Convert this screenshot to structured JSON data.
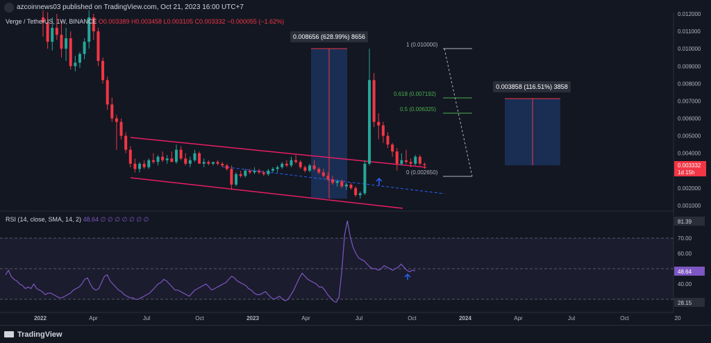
{
  "header": {
    "published": "azcoinnews03 published on TradingView.com, Oct 21, 2023 16:00 UTC+7"
  },
  "legend": {
    "symbol": "Verge / TetherUS, 1W, BINANCE",
    "ohlc": "O0.003389  H0.003458  L0.003105  C0.003332  −0.000055 (−1.62%)"
  },
  "rsi_legend": {
    "label": "RSI (14, close, SMA, 14, 2)",
    "value": "48.64  ∅  ∅  ∅  ∅  ∅  ∅  ∅"
  },
  "colors": {
    "background": "#131722",
    "up": "#26a69a",
    "down": "#f23645",
    "channel": "#e91e63",
    "rsi": "#7e57c2",
    "fib": "#4caf50",
    "box": "#1e3a6e"
  },
  "price_axis": {
    "ticks": [
      "0.012000",
      "0.011000",
      "0.010000",
      "0.009000",
      "0.008000",
      "0.007000",
      "0.006000",
      "0.005000",
      "0.004000",
      "0.002000",
      "0.001000"
    ],
    "current_price": "0.003332",
    "countdown": "1d 15h"
  },
  "rsi_axis": {
    "ticks": [
      "70.00",
      "60.00",
      "40.00"
    ],
    "high": "81.39",
    "current": "48.64",
    "low": "28.15"
  },
  "time_axis": [
    "2022",
    "Apr",
    "Jul",
    "Oct",
    "2023",
    "Apr",
    "Jul",
    "Oct",
    "2024",
    "Apr",
    "Jul",
    "Oct",
    "20"
  ],
  "annotations": {
    "measure1": "0.008656 (628.99%) 8656",
    "measure2": "0.003858 (116.51%) 3858",
    "fib_1": "1 (0.010000)",
    "fib_618": "0.618 (0.007192)",
    "fib_5": "0.5 (0.006325)",
    "fib_0": "0 (0.002650)"
  },
  "chart_data": {
    "type": "candlestick",
    "symbol": "Verge / TetherUS",
    "interval": "1W",
    "exchange": "BINANCE",
    "last": {
      "open": 0.003389,
      "high": 0.003458,
      "low": 0.003105,
      "close": 0.003332
    },
    "ylim": [
      0.0008,
      0.012
    ],
    "candles": [
      [
        0.0118,
        0.0122,
        0.0107,
        0.0115
      ],
      [
        0.0115,
        0.0121,
        0.01,
        0.0104
      ],
      [
        0.0104,
        0.0118,
        0.0099,
        0.0112
      ],
      [
        0.0112,
        0.012,
        0.0105,
        0.0108
      ],
      [
        0.0108,
        0.0116,
        0.0095,
        0.01
      ],
      [
        0.01,
        0.0112,
        0.0093,
        0.0106
      ],
      [
        0.0106,
        0.011,
        0.0088,
        0.009
      ],
      [
        0.009,
        0.0096,
        0.0087,
        0.0092
      ],
      [
        0.0092,
        0.0098,
        0.0089,
        0.0097
      ],
      [
        0.0097,
        0.0106,
        0.0094,
        0.0104
      ],
      [
        0.0104,
        0.0122,
        0.01,
        0.0118
      ],
      [
        0.0118,
        0.012,
        0.0105,
        0.011
      ],
      [
        0.011,
        0.0112,
        0.009,
        0.0093
      ],
      [
        0.0093,
        0.0095,
        0.008,
        0.0082
      ],
      [
        0.0082,
        0.0084,
        0.0065,
        0.0068
      ],
      [
        0.0068,
        0.0072,
        0.0058,
        0.006
      ],
      [
        0.006,
        0.0062,
        0.0042,
        0.0058
      ],
      [
        0.0058,
        0.006,
        0.0048,
        0.005
      ],
      [
        0.005,
        0.0052,
        0.004,
        0.0042
      ],
      [
        0.0042,
        0.0044,
        0.0032,
        0.0034
      ],
      [
        0.0034,
        0.0037,
        0.0029,
        0.0031
      ],
      [
        0.0031,
        0.0035,
        0.0029,
        0.0034
      ],
      [
        0.0034,
        0.0036,
        0.0031,
        0.0032
      ],
      [
        0.0032,
        0.0037,
        0.0031,
        0.0036
      ],
      [
        0.0036,
        0.004,
        0.0034,
        0.0035
      ],
      [
        0.0035,
        0.0039,
        0.0033,
        0.0038
      ],
      [
        0.0038,
        0.0041,
        0.0035,
        0.0036
      ],
      [
        0.0036,
        0.0039,
        0.0034,
        0.0037
      ],
      [
        0.0037,
        0.0041,
        0.0035,
        0.0035
      ],
      [
        0.0035,
        0.0045,
        0.0034,
        0.0042
      ],
      [
        0.0042,
        0.0044,
        0.0036,
        0.0037
      ],
      [
        0.0037,
        0.004,
        0.0033,
        0.0034
      ],
      [
        0.0034,
        0.0038,
        0.0032,
        0.0036
      ],
      [
        0.0036,
        0.0042,
        0.0035,
        0.004
      ],
      [
        0.004,
        0.0041,
        0.0034,
        0.0034
      ],
      [
        0.0034,
        0.0037,
        0.0032,
        0.0035
      ],
      [
        0.0035,
        0.0036,
        0.0033,
        0.0034
      ],
      [
        0.0034,
        0.0035,
        0.0033,
        0.0035
      ],
      [
        0.0035,
        0.0036,
        0.0033,
        0.0034
      ],
      [
        0.0034,
        0.0035,
        0.0032,
        0.0033
      ],
      [
        0.0033,
        0.0034,
        0.003,
        0.0031
      ],
      [
        0.0031,
        0.0033,
        0.0019,
        0.0022
      ],
      [
        0.0022,
        0.0029,
        0.0021,
        0.0028
      ],
      [
        0.0028,
        0.003,
        0.0026,
        0.0027
      ],
      [
        0.0027,
        0.0031,
        0.0026,
        0.003
      ],
      [
        0.003,
        0.0031,
        0.0028,
        0.0029
      ],
      [
        0.0029,
        0.0032,
        0.0028,
        0.003
      ],
      [
        0.003,
        0.0031,
        0.0028,
        0.0029
      ],
      [
        0.0029,
        0.003,
        0.0027,
        0.0028
      ],
      [
        0.0028,
        0.0031,
        0.0027,
        0.003
      ],
      [
        0.003,
        0.0032,
        0.0029,
        0.0031
      ],
      [
        0.0031,
        0.0033,
        0.0029,
        0.0032
      ],
      [
        0.0032,
        0.0035,
        0.0031,
        0.0034
      ],
      [
        0.0034,
        0.0036,
        0.0032,
        0.0033
      ],
      [
        0.0033,
        0.0038,
        0.0032,
        0.0036
      ],
      [
        0.0036,
        0.0039,
        0.0034,
        0.0035
      ],
      [
        0.0035,
        0.0036,
        0.0031,
        0.0032
      ],
      [
        0.0032,
        0.0033,
        0.0029,
        0.003
      ],
      [
        0.003,
        0.0034,
        0.0029,
        0.0033
      ],
      [
        0.0033,
        0.0036,
        0.003,
        0.0031
      ],
      [
        0.0031,
        0.0032,
        0.0028,
        0.0029
      ],
      [
        0.0029,
        0.0031,
        0.0026,
        0.0027
      ],
      [
        0.0027,
        0.0029,
        0.0024,
        0.0025
      ],
      [
        0.0025,
        0.0027,
        0.0022,
        0.0023
      ],
      [
        0.0023,
        0.0025,
        0.0021,
        0.0024
      ],
      [
        0.0024,
        0.0025,
        0.002,
        0.0021
      ],
      [
        0.0021,
        0.0023,
        0.0019,
        0.0022
      ],
      [
        0.0022,
        0.0023,
        0.0019,
        0.002
      ],
      [
        0.002,
        0.0021,
        0.0015,
        0.0016
      ],
      [
        0.0016,
        0.0018,
        0.0014,
        0.0017
      ],
      [
        0.0017,
        0.0036,
        0.0016,
        0.0034
      ],
      [
        0.0034,
        0.01,
        0.0033,
        0.0082
      ],
      [
        0.0082,
        0.0086,
        0.0055,
        0.0058
      ],
      [
        0.0058,
        0.0063,
        0.0048,
        0.0056
      ],
      [
        0.0056,
        0.0058,
        0.0046,
        0.005
      ],
      [
        0.005,
        0.0052,
        0.0043,
        0.0045
      ],
      [
        0.0045,
        0.0046,
        0.0038,
        0.0041
      ],
      [
        0.0041,
        0.0043,
        0.003,
        0.0034
      ],
      [
        0.0034,
        0.004,
        0.0033,
        0.0036
      ],
      [
        0.0036,
        0.0042,
        0.0034,
        0.0035
      ],
      [
        0.0035,
        0.0037,
        0.0032,
        0.0034
      ],
      [
        0.0034,
        0.0039,
        0.0033,
        0.0038
      ],
      [
        0.0038,
        0.0039,
        0.0033,
        0.0034
      ],
      [
        0.003389,
        0.003458,
        0.003105,
        0.003332
      ]
    ],
    "rsi": [
      46,
      49,
      45,
      43,
      42,
      40,
      39,
      37,
      38,
      37,
      40,
      37,
      36,
      35,
      33,
      34,
      34,
      33,
      32,
      31,
      31,
      32,
      33,
      34,
      36,
      37,
      38,
      40,
      43,
      44,
      40,
      37,
      36,
      37,
      41,
      45,
      46,
      42,
      40,
      38,
      36,
      35,
      33,
      32,
      31,
      31,
      30,
      30,
      31,
      32,
      33,
      34,
      36,
      38,
      40,
      41,
      43,
      42,
      40,
      38,
      36,
      36,
      35,
      34,
      33,
      32,
      34,
      36,
      37,
      38,
      39,
      40,
      38,
      36,
      37,
      38,
      39,
      40,
      41,
      43,
      45,
      44,
      42,
      41,
      40,
      39,
      37,
      36,
      34,
      33,
      33,
      34,
      35,
      33,
      31,
      30,
      31,
      32,
      30,
      29,
      30,
      33,
      36,
      40,
      44,
      47,
      45,
      43,
      42,
      41,
      40,
      38,
      38,
      36,
      33,
      31,
      29,
      28,
      31,
      48,
      72,
      81.39,
      71,
      64,
      60,
      57,
      56,
      55,
      53,
      51,
      50,
      50,
      49,
      50,
      52,
      51,
      50,
      49,
      50,
      51,
      53,
      51,
      49,
      48,
      49,
      48.64
    ]
  }
}
